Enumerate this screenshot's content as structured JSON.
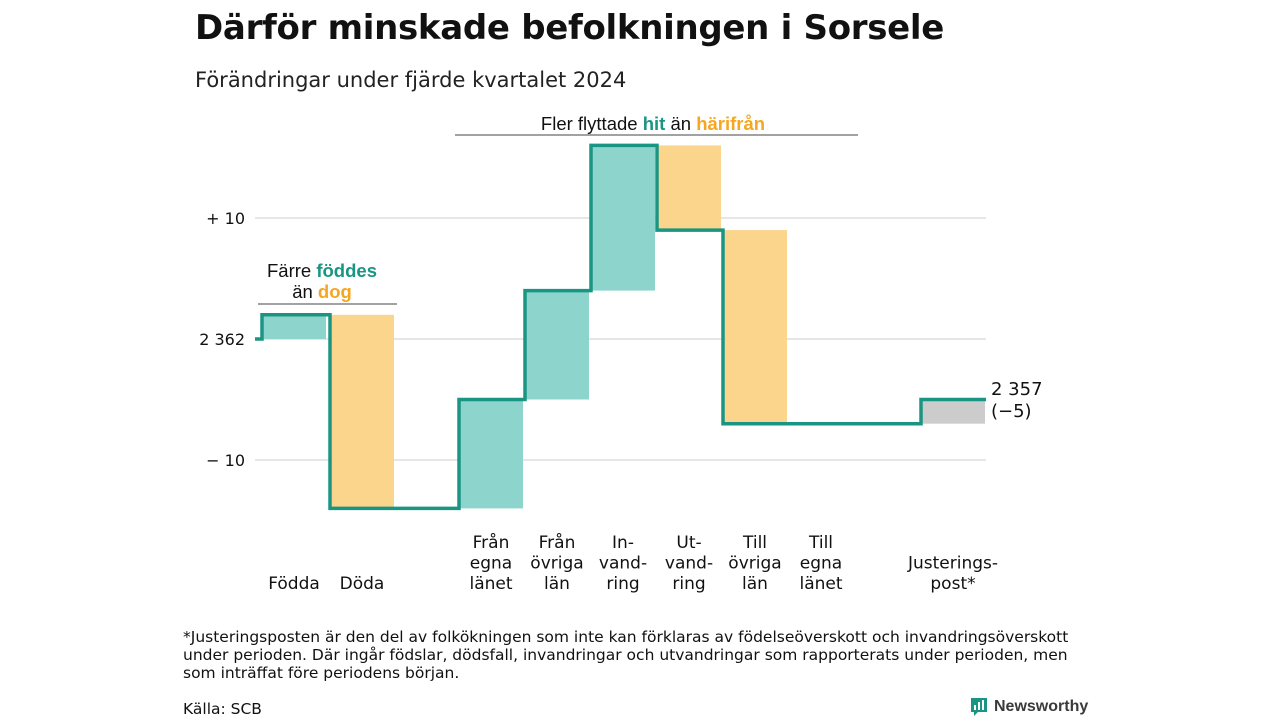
{
  "title": "Därför minskade befolkningen i Sorsele",
  "subtitle": "Förändringar under fjärde kvartalet 2024",
  "colors": {
    "teal": "#1a9584",
    "teal_fill": "#8dd5cc",
    "orange": "#f5a623",
    "orange_fill": "#fad58b",
    "gray_fill": "#cccccc",
    "grid": "#dddddd"
  },
  "chart_data": {
    "type": "waterfall",
    "start_value": 2362,
    "end_value": 2357,
    "ylim": [
      -14,
      16
    ],
    "y_ticks": [
      {
        "value": 10,
        "label": "+ 10"
      },
      {
        "value": 0,
        "label": "2 362"
      },
      {
        "value": -10,
        "label": "− 10"
      }
    ],
    "steps": [
      {
        "lines": [
          "Födda"
        ],
        "change": 2,
        "group": "in"
      },
      {
        "lines": [
          "Döda"
        ],
        "change": -16,
        "group": "out"
      },
      {
        "lines": [
          "Från",
          "egna",
          "länet"
        ],
        "change": 9,
        "group": "in"
      },
      {
        "lines": [
          "Från",
          "övriga",
          "län"
        ],
        "change": 9,
        "group": "in"
      },
      {
        "lines": [
          "In-",
          "vand-",
          "ring"
        ],
        "change": 12,
        "group": "in"
      },
      {
        "lines": [
          "Ut-",
          "vand-",
          "ring"
        ],
        "change": -7,
        "group": "out"
      },
      {
        "lines": [
          "Till",
          "övriga",
          "län"
        ],
        "change": -16,
        "group": "out"
      },
      {
        "lines": [
          "Justerings-",
          "post*"
        ],
        "change": 2,
        "group": "adjust"
      }
    ],
    "zero_steps": [
      {
        "after": 1
      },
      {
        "after": 4
      },
      {
        "after": 6
      }
    ],
    "extra_label": {
      "lines": [
        "Till",
        "egna",
        "länet"
      ]
    },
    "end_label": "2 357",
    "end_change_label": "(−5)",
    "annotations": {
      "births": {
        "pre1": "Färre ",
        "hl1": "föddes",
        "pre2": "än ",
        "hl2": "dog"
      },
      "migration": {
        "pre1": "Fler flyttade ",
        "hl1": "hit",
        "pre2": " än ",
        "hl2": "härifrån"
      }
    }
  },
  "footnote": "*Justeringsposten är den del av folkökningen som inte kan förklaras av födelseöverskott och invandringsöverskott under perioden. Där ingår födslar, dödsfall, invandringar och utvandringar som rapporterats under perioden, men som inträffat före periodens början.",
  "source": "Källa: SCB",
  "brand": "Newsworthy"
}
